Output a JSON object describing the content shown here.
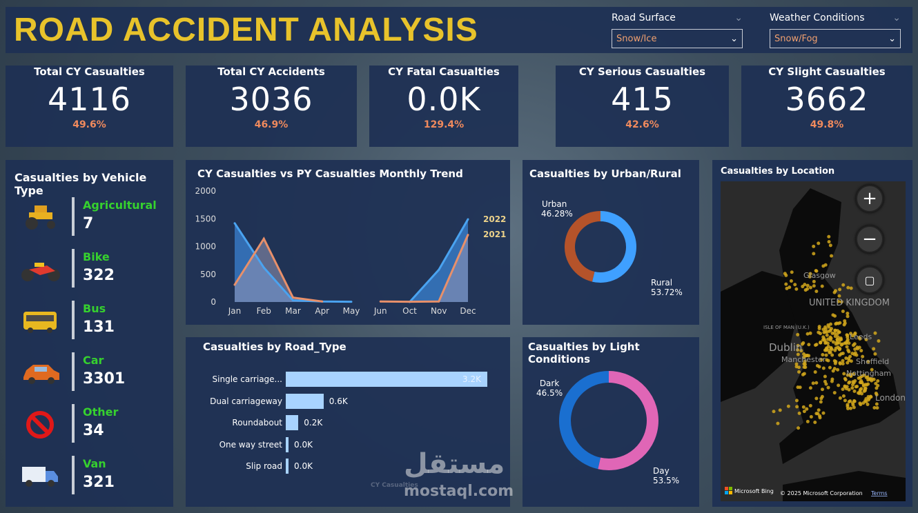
{
  "header": {
    "title": "ROAD ACCIDENT ANALYSIS",
    "slicers": [
      {
        "label": "Road Surface",
        "value": "Snow/Ice"
      },
      {
        "label": "Weather Conditions",
        "value": "Snow/Fog"
      }
    ]
  },
  "kpis": [
    {
      "title": "Total CY Casualties",
      "value": "4116",
      "pct": "49.6%"
    },
    {
      "title": "Total CY Accidents",
      "value": "3036",
      "pct": "46.9%"
    },
    {
      "title": "CY Fatal Casualties",
      "value": "0.0K",
      "pct": "129.4%"
    },
    {
      "title": "CY Serious Casualties",
      "value": "415",
      "pct": "42.6%"
    },
    {
      "title": "CY Slight Casualties",
      "value": "3662",
      "pct": "49.8%"
    }
  ],
  "vehicles": {
    "title": "Casualties by Vehicle Type",
    "items": [
      {
        "name": "Agricultural",
        "count": "7",
        "icon": "tractor-icon"
      },
      {
        "name": "Bike",
        "count": "322",
        "icon": "motorbike-icon"
      },
      {
        "name": "Bus",
        "count": "131",
        "icon": "bus-icon"
      },
      {
        "name": "Car",
        "count": "3301",
        "icon": "car-icon"
      },
      {
        "name": "Other",
        "count": "34",
        "icon": "prohibited-icon"
      },
      {
        "name": "Van",
        "count": "321",
        "icon": "van-icon"
      }
    ]
  },
  "chart_data": [
    {
      "type": "area",
      "title": "CY Casualties vs PY Casualties Monthly Trend",
      "categories": [
        "Jan",
        "Feb",
        "Mar",
        "Apr",
        "May",
        "Jun",
        "Oct",
        "Nov",
        "Dec"
      ],
      "yticks": [
        "0",
        "500",
        "1000",
        "1500",
        "2000"
      ],
      "ylim": [
        0,
        2000
      ],
      "series": [
        {
          "name": "2022",
          "color": "#4aa3f0",
          "values": [
            1420,
            620,
            30,
            10,
            5,
            null,
            0,
            580,
            1490
          ]
        },
        {
          "name": "2021",
          "color": "#e8906a",
          "values": [
            310,
            1140,
            80,
            10,
            null,
            10,
            5,
            10,
            1210
          ]
        }
      ]
    },
    {
      "type": "pie",
      "title": "Casualties by Urban/Rural",
      "slices": [
        {
          "label": "Rural",
          "value": 53.72,
          "display": "53.72%",
          "color": "#3fa0ff"
        },
        {
          "label": "Urban",
          "value": 46.28,
          "display": "46.28%",
          "color": "#b5532a"
        }
      ]
    },
    {
      "type": "bar",
      "title": "Casualties by Road_Type",
      "xmax": 3.2,
      "categories": [
        "Single carriage...",
        "Dual carriageway",
        "Roundabout",
        "One way street",
        "Slip road"
      ],
      "values": [
        3.2,
        0.6,
        0.2,
        0.0,
        0.0
      ],
      "labels": [
        "3.2K",
        "0.6K",
        "0.2K",
        "0.0K",
        "0.0K"
      ],
      "color": "#a8d3ff"
    },
    {
      "type": "pie",
      "title": "Casualties by Light Conditions",
      "slices": [
        {
          "label": "Day",
          "value": 53.5,
          "display": "53.5%",
          "color": "#e066b6"
        },
        {
          "label": "Dark",
          "value": 46.5,
          "display": "46.5%",
          "color": "#1a6fd0"
        }
      ]
    }
  ],
  "map": {
    "title": "Casualties by Location",
    "labels": [
      "Glasgow",
      "UNITED KINGDOM",
      "ISLE OF MAN (U.K.)",
      "Dublin",
      "Manchester",
      "Leeds",
      "Sheffield",
      "Nottingham",
      "London"
    ],
    "attribution": "Microsoft Bing",
    "copyright": "© 2025 Microsoft Corporation",
    "terms": "Terms",
    "dot_color": "#d4a81c"
  },
  "watermark": {
    "arabic": "مستقل",
    "latin": "mostaql.com",
    "faded": "CY Casualties"
  }
}
